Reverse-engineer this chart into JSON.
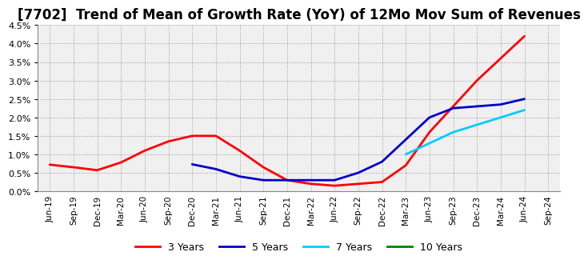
{
  "title": "[7702]  Trend of Mean of Growth Rate (YoY) of 12Mo Mov Sum of Revenues",
  "title_fontsize": 12,
  "background_color": "#ffffff",
  "plot_bg_color": "#f0f0f0",
  "grid_color": "#999999",
  "ylim": [
    0.0,
    0.045
  ],
  "yticks": [
    0.0,
    0.005,
    0.01,
    0.015,
    0.02,
    0.025,
    0.03,
    0.035,
    0.04,
    0.045
  ],
  "xtick_labels": [
    "Jun-19",
    "Sep-19",
    "Dec-19",
    "Mar-20",
    "Jun-20",
    "Sep-20",
    "Dec-20",
    "Mar-21",
    "Jun-21",
    "Sep-21",
    "Dec-21",
    "Mar-22",
    "Jun-22",
    "Sep-22",
    "Dec-22",
    "Mar-23",
    "Jun-23",
    "Sep-23",
    "Dec-23",
    "Mar-24",
    "Jun-24",
    "Sep-24"
  ],
  "series": {
    "3 Years": {
      "color": "#ff0000",
      "x_indices": [
        0,
        1,
        2,
        3,
        4,
        5,
        6,
        7,
        8,
        9,
        10,
        11,
        12,
        13,
        14,
        15,
        16,
        17,
        18,
        19,
        20
      ],
      "y": [
        0.0072,
        0.0065,
        0.0057,
        0.0078,
        0.011,
        0.0135,
        0.015,
        0.015,
        0.011,
        0.0065,
        0.003,
        0.002,
        0.0015,
        0.002,
        0.0025,
        0.007,
        0.016,
        0.023,
        0.03,
        0.036,
        0.042
      ]
    },
    "5 Years": {
      "color": "#0000cc",
      "x_indices": [
        6,
        7,
        8,
        9,
        10,
        11,
        12,
        13,
        14,
        15,
        16,
        17,
        18,
        19,
        20
      ],
      "y": [
        0.0073,
        0.006,
        0.004,
        0.003,
        0.003,
        0.003,
        0.003,
        0.005,
        0.008,
        0.014,
        0.02,
        0.0225,
        0.023,
        0.0235,
        0.025
      ]
    },
    "7 Years": {
      "color": "#00ccff",
      "x_indices": [
        15,
        16,
        17,
        18,
        19,
        20
      ],
      "y": [
        0.01,
        0.013,
        0.016,
        0.018,
        0.02,
        0.022
      ]
    },
    "10 Years": {
      "color": "#008000",
      "x_indices": [],
      "y": []
    }
  },
  "legend_labels": [
    "3 Years",
    "5 Years",
    "7 Years",
    "10 Years"
  ],
  "legend_colors": [
    "#ff0000",
    "#0000cc",
    "#00ccff",
    "#008000"
  ],
  "linewidth": 2.0
}
